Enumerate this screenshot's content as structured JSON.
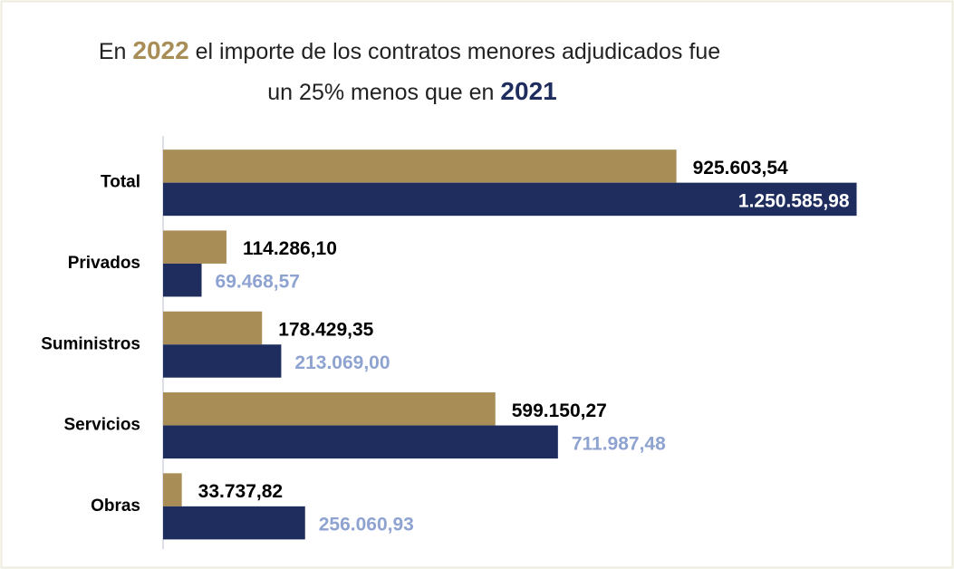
{
  "chart_data": {
    "type": "hbar",
    "title_parts": [
      "En",
      "el importe de los contratos menores adjudicados fue",
      "un 25% menos que en"
    ],
    "categories": [
      "Total",
      "Privados",
      "Suministros",
      "Servicios",
      "Obras"
    ],
    "series": [
      {
        "name": "2022",
        "color": "#a88d57",
        "label_color": "#000000",
        "values": [
          925603.54,
          114286.1,
          178429.35,
          599150.27,
          33737.82
        ],
        "value_labels": [
          "925.603,54",
          "114.286,10",
          "178.429,35",
          "599.150,27",
          "33.737,82"
        ]
      },
      {
        "name": "2021",
        "color": "#1f2d5e",
        "label_color": "#8fa3d1",
        "values": [
          1250585.98,
          69468.57,
          213069.0,
          711987.48,
          256060.93
        ],
        "value_labels": [
          "1.250.585,98",
          "69.468,57",
          "213.069,00",
          "711.987,48",
          "256.060,93"
        ]
      }
    ],
    "xlim": [
      0,
      1400000
    ]
  }
}
